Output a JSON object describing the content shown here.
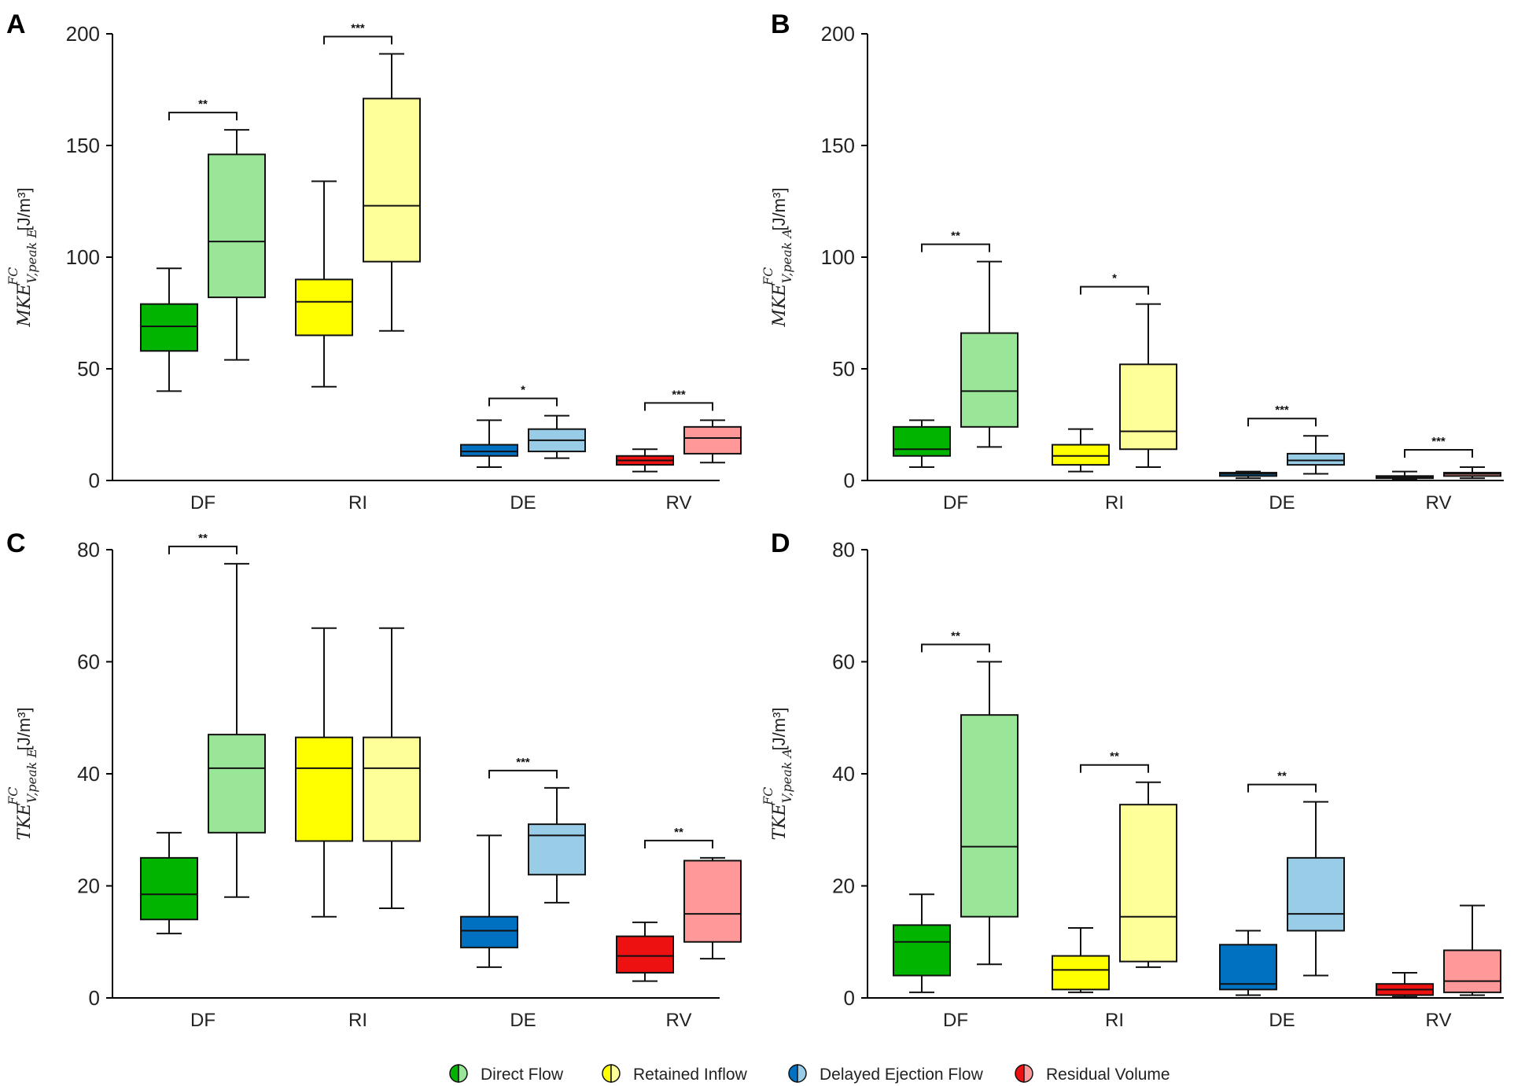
{
  "chart_data": [
    {
      "type": "box",
      "panel": "A",
      "ylabel_base": "MKE",
      "ylabel_sup": "FC",
      "ylabel_sub": "V,peak E",
      "ylabel_unit": " [J/m³]",
      "ylim": [
        0,
        200
      ],
      "yticks": [
        0,
        50,
        100,
        150,
        200
      ],
      "categories": [
        "DF",
        "RI",
        "DE",
        "RV"
      ],
      "groups": [
        {
          "category": "DF",
          "boxes": [
            {
              "group": "Direct Flow",
              "shade": "dark",
              "min": 40,
              "q1": 58,
              "median": 69,
              "q3": 79,
              "max": 95
            },
            {
              "group": "Direct Flow",
              "shade": "light",
              "min": 54,
              "q1": 82,
              "median": 107,
              "q3": 146,
              "max": 157
            }
          ],
          "significance": "**"
        },
        {
          "category": "RI",
          "boxes": [
            {
              "group": "Retained Inflow",
              "shade": "dark",
              "min": 42,
              "q1": 65,
              "median": 80,
              "q3": 90,
              "max": 134
            },
            {
              "group": "Retained Inflow",
              "shade": "light",
              "min": 67,
              "q1": 98,
              "median": 123,
              "q3": 171,
              "max": 191
            }
          ],
          "significance": "***"
        },
        {
          "category": "DE",
          "boxes": [
            {
              "group": "Delayed Ejection Flow",
              "shade": "dark",
              "min": 6,
              "q1": 11,
              "median": 13,
              "q3": 16,
              "max": 27
            },
            {
              "group": "Delayed Ejection Flow",
              "shade": "light",
              "min": 10,
              "q1": 13,
              "median": 18,
              "q3": 23,
              "max": 29
            }
          ],
          "significance": "*"
        },
        {
          "category": "RV",
          "boxes": [
            {
              "group": "Residual Volume",
              "shade": "dark",
              "min": 4,
              "q1": 7,
              "median": 9,
              "q3": 11,
              "max": 14
            },
            {
              "group": "Residual Volume",
              "shade": "light",
              "min": 8,
              "q1": 12,
              "median": 19,
              "q3": 24,
              "max": 27
            }
          ],
          "significance": "***"
        }
      ]
    },
    {
      "type": "box",
      "panel": "B",
      "ylabel_base": "MKE",
      "ylabel_sup": "FC",
      "ylabel_sub": "V,peak A",
      "ylabel_unit": " [J/m³]",
      "ylim": [
        0,
        200
      ],
      "yticks": [
        0,
        50,
        100,
        150,
        200
      ],
      "categories": [
        "DF",
        "RI",
        "DE",
        "RV"
      ],
      "groups": [
        {
          "category": "DF",
          "boxes": [
            {
              "group": "Direct Flow",
              "shade": "dark",
              "min": 6,
              "q1": 11,
              "median": 14,
              "q3": 24,
              "max": 27
            },
            {
              "group": "Direct Flow",
              "shade": "light",
              "min": 15,
              "q1": 24,
              "median": 40,
              "q3": 66,
              "max": 98
            }
          ],
          "significance": "**"
        },
        {
          "category": "RI",
          "boxes": [
            {
              "group": "Retained Inflow",
              "shade": "dark",
              "min": 4,
              "q1": 7,
              "median": 11,
              "q3": 16,
              "max": 23
            },
            {
              "group": "Retained Inflow",
              "shade": "light",
              "min": 6,
              "q1": 14,
              "median": 22,
              "q3": 52,
              "max": 79
            }
          ],
          "significance": "*"
        },
        {
          "category": "DE",
          "boxes": [
            {
              "group": "Delayed Ejection Flow",
              "shade": "dark",
              "min": 1,
              "q1": 2,
              "median": 3,
              "q3": 3.5,
              "max": 4
            },
            {
              "group": "Delayed Ejection Flow",
              "shade": "light",
              "min": 3,
              "q1": 7,
              "median": 9,
              "q3": 12,
              "max": 20
            }
          ],
          "significance": "***"
        },
        {
          "category": "RV",
          "boxes": [
            {
              "group": "Residual Volume",
              "shade": "dark",
              "min": 0.5,
              "q1": 1,
              "median": 1.5,
              "q3": 2,
              "max": 4
            },
            {
              "group": "Residual Volume",
              "shade": "light",
              "min": 1,
              "q1": 2,
              "median": 3,
              "q3": 3.5,
              "max": 6
            }
          ],
          "significance": "***"
        }
      ]
    },
    {
      "type": "box",
      "panel": "C",
      "ylabel_base": "TKE",
      "ylabel_sup": "FC",
      "ylabel_sub": "V,peak E",
      "ylabel_unit": " [J/m³]",
      "ylim": [
        0,
        80
      ],
      "yticks": [
        0,
        20,
        40,
        60,
        80
      ],
      "categories": [
        "DF",
        "RI",
        "DE",
        "RV"
      ],
      "groups": [
        {
          "category": "DF",
          "boxes": [
            {
              "group": "Direct Flow",
              "shade": "dark",
              "min": 11.5,
              "q1": 14,
              "median": 18.5,
              "q3": 25,
              "max": 29.5
            },
            {
              "group": "Direct Flow",
              "shade": "light",
              "min": 18,
              "q1": 29.5,
              "median": 41,
              "q3": 47,
              "max": 77.5
            }
          ],
          "significance": "**"
        },
        {
          "category": "RI",
          "boxes": [
            {
              "group": "Retained Inflow",
              "shade": "dark",
              "min": 14.5,
              "q1": 28,
              "median": 41,
              "q3": 46.5,
              "max": 66
            },
            {
              "group": "Retained Inflow",
              "shade": "light",
              "min": 16,
              "q1": 28,
              "median": 41,
              "q3": 46.5,
              "max": 66
            }
          ],
          "significance": ""
        },
        {
          "category": "DE",
          "boxes": [
            {
              "group": "Delayed Ejection Flow",
              "shade": "dark",
              "min": 5.5,
              "q1": 9,
              "median": 12,
              "q3": 14.5,
              "max": 29
            },
            {
              "group": "Delayed Ejection Flow",
              "shade": "light",
              "min": 17,
              "q1": 22,
              "median": 29,
              "q3": 31,
              "max": 37.5
            }
          ],
          "significance": "***"
        },
        {
          "category": "RV",
          "boxes": [
            {
              "group": "Residual Volume",
              "shade": "dark",
              "min": 3,
              "q1": 4.5,
              "median": 7.5,
              "q3": 11,
              "max": 13.5
            },
            {
              "group": "Residual Volume",
              "shade": "light",
              "min": 7,
              "q1": 10,
              "median": 15,
              "q3": 24.5,
              "max": 25
            }
          ],
          "significance": "**"
        }
      ]
    },
    {
      "type": "box",
      "panel": "D",
      "ylabel_base": "TKE",
      "ylabel_sup": "FC",
      "ylabel_sub": "V,peak A",
      "ylabel_unit": " [J/m³]",
      "ylim": [
        0,
        80
      ],
      "yticks": [
        0,
        20,
        40,
        60,
        80
      ],
      "categories": [
        "DF",
        "RI",
        "DE",
        "RV"
      ],
      "groups": [
        {
          "category": "DF",
          "boxes": [
            {
              "group": "Direct Flow",
              "shade": "dark",
              "min": 1,
              "q1": 4,
              "median": 10,
              "q3": 13,
              "max": 18.5
            },
            {
              "group": "Direct Flow",
              "shade": "light",
              "min": 6,
              "q1": 14.5,
              "median": 27,
              "q3": 50.5,
              "max": 60
            }
          ],
          "significance": "**"
        },
        {
          "category": "RI",
          "boxes": [
            {
              "group": "Retained Inflow",
              "shade": "dark",
              "min": 1,
              "q1": 1.5,
              "median": 5,
              "q3": 7.5,
              "max": 12.5
            },
            {
              "group": "Retained Inflow",
              "shade": "light",
              "min": 5.5,
              "q1": 6.5,
              "median": 14.5,
              "q3": 34.5,
              "max": 38.5
            }
          ],
          "significance": "**"
        },
        {
          "category": "DE",
          "boxes": [
            {
              "group": "Delayed Ejection Flow",
              "shade": "dark",
              "min": 0.5,
              "q1": 1.5,
              "median": 2.5,
              "q3": 9.5,
              "max": 12
            },
            {
              "group": "Delayed Ejection Flow",
              "shade": "light",
              "min": 4,
              "q1": 12,
              "median": 15,
              "q3": 25,
              "max": 35
            }
          ],
          "significance": "**"
        },
        {
          "category": "RV",
          "boxes": [
            {
              "group": "Residual Volume",
              "shade": "dark",
              "min": 0.2,
              "q1": 0.5,
              "median": 1.5,
              "q3": 2.5,
              "max": 4.5
            },
            {
              "group": "Residual Volume",
              "shade": "light",
              "min": 0.5,
              "q1": 1,
              "median": 3,
              "q3": 8.5,
              "max": 16.5
            }
          ],
          "significance": ""
        }
      ]
    }
  ],
  "legend": [
    {
      "label": "Direct Flow",
      "dark": "#00b400",
      "light": "#99e699"
    },
    {
      "label": "Retained Inflow",
      "dark": "#ffff00",
      "light": "#ffff99"
    },
    {
      "label": "Delayed Ejection Flow",
      "dark": "#0070c0",
      "light": "#99cce6"
    },
    {
      "label": "Residual Volume",
      "dark": "#ee1111",
      "light": "#ff9999"
    }
  ]
}
